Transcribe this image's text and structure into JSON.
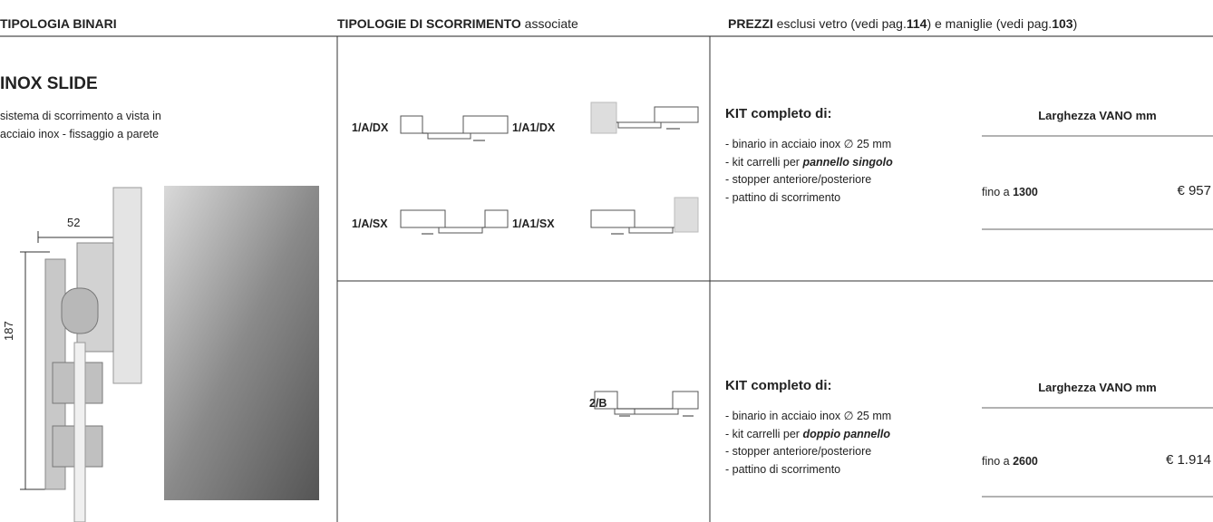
{
  "header": {
    "col1": "TIPOLOGIA BINARI",
    "col2": [
      "TIPOLOGIE DI SCORRIMENTO",
      " associate"
    ],
    "col3": [
      "PREZZI",
      " esclusi vetro (vedi pag.",
      "114",
      ") e maniglie (vedi pag.",
      "103",
      ")"
    ]
  },
  "product": {
    "title": "INOX SLIDE",
    "description": [
      "sistema di scorrimento a vista in",
      "acciaio inox - fissaggio a parete"
    ],
    "dimensions": {
      "width": "52",
      "height": "187"
    }
  },
  "rows": [
    {
      "types": [
        "1/A/DX",
        "1/A1/DX",
        "1/A/SX",
        "1/A1/SX"
      ],
      "kit": {
        "title": "KIT completo di:",
        "items": [
          [
            "- binario in acciaio inox ∅ 25 mm"
          ],
          [
            "- kit carrelli per ",
            "pannello singolo"
          ],
          [
            "- stopper anteriore/posteriore"
          ],
          [
            "- pattino di scorrimento"
          ]
        ]
      },
      "price": {
        "header": "Larghezza VANO mm",
        "size_prefix": "fino a ",
        "size": "1300",
        "price": "€ 957"
      }
    },
    {
      "types": [
        "2/B"
      ],
      "kit": {
        "title": "KIT completo di:",
        "items": [
          [
            "- binario in acciaio inox ∅ 25 mm"
          ],
          [
            "- kit carrelli per ",
            "doppio pannello"
          ],
          [
            "- stopper anteriore/posteriore"
          ],
          [
            "- pattino di scorrimento"
          ]
        ]
      },
      "price": {
        "header": "Larghezza VANO mm",
        "size_prefix": "fino a ",
        "size": "2600",
        "price": "€ 1.914"
      }
    }
  ]
}
